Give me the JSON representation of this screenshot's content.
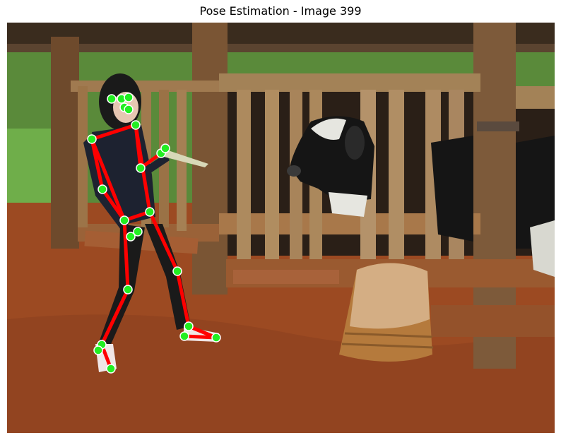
{
  "figure": {
    "title": "Pose Estimation - Image 399"
  },
  "colors": {
    "skeleton": "#ff0000",
    "keypoint": "#22ee22",
    "keypoint_outline": "#ffffff",
    "ground": "#9c4a22",
    "wood": "#8a5a32",
    "shadow": "#1e1510",
    "foliage": "#4f8a32",
    "cow_black": "#151515",
    "cow_white": "#e6e6e0",
    "basket": "#b57a3c",
    "clothing": "#1d2230"
  },
  "scene": {
    "subjects": [
      "person",
      "cow",
      "wooden-fence",
      "woven-basket"
    ]
  }
}
